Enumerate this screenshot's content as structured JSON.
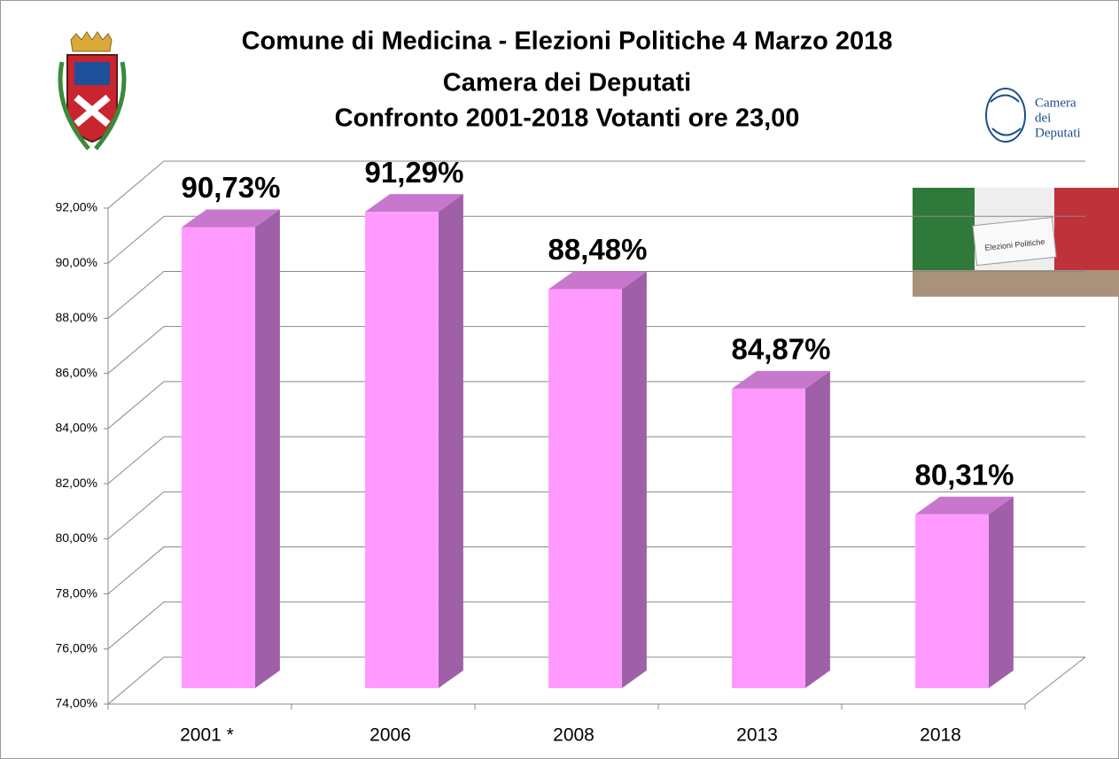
{
  "chart_data": {
    "type": "bar3d",
    "title": "Comune di Medicina - Elezioni Politiche 4 Marzo 2018",
    "subtitle": [
      "Camera dei Deputati",
      "Confronto 2001-2018 Votanti ore 23,00"
    ],
    "categories": [
      "2001 *",
      "2006",
      "2008",
      "2013",
      "2018"
    ],
    "values": [
      90.73,
      91.29,
      88.48,
      84.87,
      80.31
    ],
    "value_labels": [
      "90,73%",
      "91,29%",
      "88,48%",
      "84,87%",
      "80,31%"
    ],
    "color": "#ff99ff",
    "ylim": [
      74,
      92
    ],
    "yticks": [
      {
        "value": 74,
        "label": "74,00%"
      },
      {
        "value": 76,
        "label": "76,00%"
      },
      {
        "value": 78,
        "label": "78,00%"
      },
      {
        "value": 80,
        "label": "80,00%"
      },
      {
        "value": 82,
        "label": "82,00%"
      },
      {
        "value": 84,
        "label": "84,00%"
      },
      {
        "value": 86,
        "label": "86,00%"
      },
      {
        "value": 88,
        "label": "88,00%"
      },
      {
        "value": 90,
        "label": "90,00%"
      },
      {
        "value": 92,
        "label": "92,00%"
      }
    ],
    "grid": true
  },
  "logo_text": [
    "Camera",
    "dei",
    "Deputati"
  ],
  "image_text": "Elezioni Politiche"
}
